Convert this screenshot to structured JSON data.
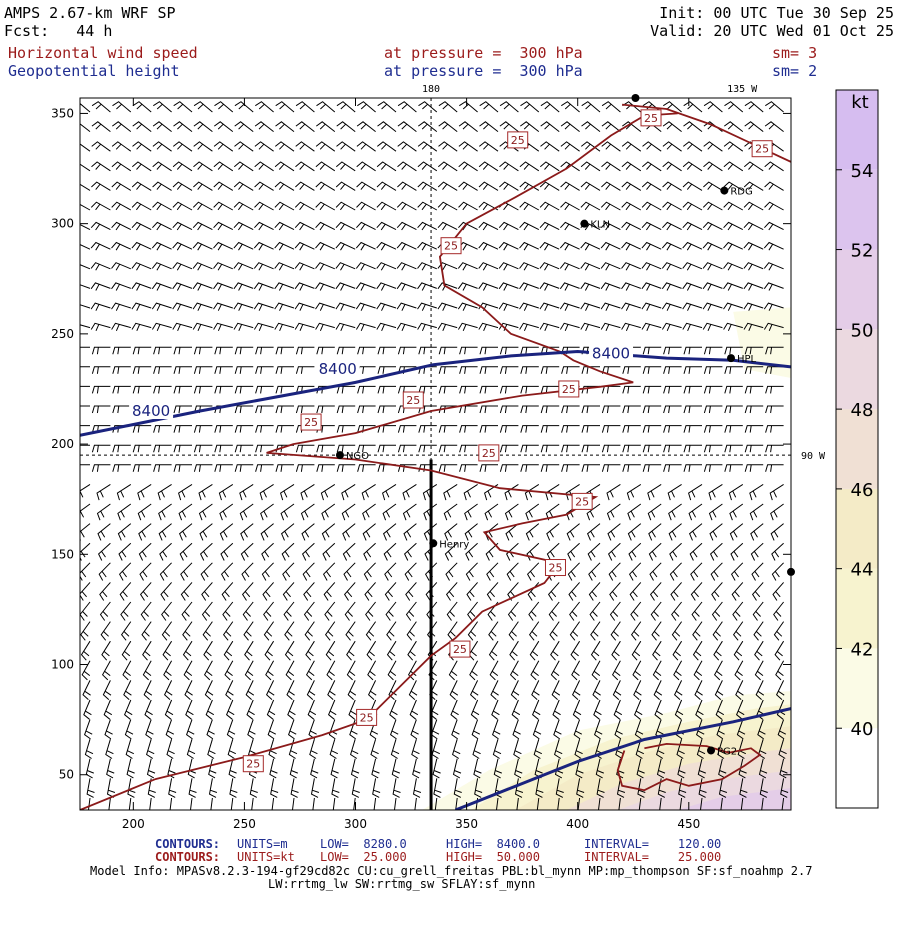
{
  "header": {
    "model_title": "AMPS 2.67-km WRF SP",
    "forecast": "Fcst:   44 h",
    "init": "Init: 00 UTC Tue 30 Sep 25",
    "valid": "Valid: 20 UTC Wed 01 Oct 25",
    "field1_name": "Horizontal wind speed",
    "field1_level": "at pressure =  300 hPa",
    "field1_smooth": "sm= 3",
    "field2_name": "Geopotential height",
    "field2_level": "at pressure =  300 hPa",
    "field2_smooth": "sm= 2"
  },
  "colors": {
    "height_contour": "#1a237e",
    "speed_contour": "#8b1a1a",
    "speed_label_border": "#a52a2a",
    "barb": "#000000",
    "lon_line": "#000000",
    "fill_40": "#fbfbe6",
    "fill_42": "#f7f3cf",
    "fill_44": "#f4ebc7",
    "fill_46": "#f0e0d4",
    "fill_48": "#ebd9e0",
    "fill_50": "#e4cde8",
    "fill_52": "#dcc4ee",
    "fill_54": "#d6bdf0"
  },
  "chart_data": {
    "type": "contour-map",
    "xlim": [
      176,
      496
    ],
    "ylim": [
      34,
      357
    ],
    "x_ticks": [
      200,
      250,
      300,
      350,
      400,
      450
    ],
    "y_ticks": [
      50,
      100,
      150,
      200,
      250,
      300,
      350
    ],
    "lon_labels": [
      {
        "text": "180",
        "x": 334,
        "y": 357
      },
      {
        "text": "135 W",
        "x": 474,
        "y": 357
      },
      {
        "text": "90 W",
        "x": 496,
        "y": 195
      }
    ],
    "meridian_x": 334,
    "parallel_y": 195,
    "cross_section_line": {
      "x": 334,
      "y_from": 34,
      "y_to": 193
    },
    "height_contours": [
      {
        "value": "8400",
        "points": [
          [
            176,
            204
          ],
          [
            230,
            215
          ],
          [
            300,
            228
          ],
          [
            335,
            236
          ],
          [
            370,
            240
          ],
          [
            400,
            242
          ],
          [
            440,
            239
          ],
          [
            470,
            238
          ],
          [
            496,
            235
          ]
        ],
        "labels": [
          {
            "x": 208,
            "y": 215
          },
          {
            "x": 292,
            "y": 234
          },
          {
            "x": 415,
            "y": 241
          }
        ]
      },
      {
        "value": "",
        "points": [
          [
            345,
            34
          ],
          [
            370,
            44
          ],
          [
            400,
            56
          ],
          [
            430,
            66
          ],
          [
            470,
            74
          ],
          [
            496,
            80
          ]
        ],
        "labels": []
      }
    ],
    "speed_contours": [
      {
        "value": "25",
        "points": [
          [
            420,
            354
          ],
          [
            440,
            352
          ],
          [
            460,
            345
          ],
          [
            496,
            328
          ]
        ],
        "labels": []
      },
      {
        "value": "25",
        "points": [
          [
            176,
            34
          ],
          [
            210,
            48
          ],
          [
            250,
            58
          ],
          [
            285,
            68
          ],
          [
            305,
            75
          ],
          [
            320,
            90
          ],
          [
            334,
            104
          ],
          [
            345,
            112
          ],
          [
            357,
            124
          ],
          [
            385,
            137
          ],
          [
            392,
            146
          ],
          [
            365,
            152
          ],
          [
            358,
            160
          ],
          [
            375,
            164
          ],
          [
            395,
            168
          ],
          [
            408,
            176
          ],
          [
            365,
            180
          ],
          [
            334,
            188
          ],
          [
            300,
            193
          ],
          [
            260,
            196
          ],
          [
            272,
            200
          ],
          [
            300,
            205
          ],
          [
            334,
            215
          ],
          [
            375,
            222
          ],
          [
            410,
            226
          ],
          [
            425,
            228
          ],
          [
            410,
            233
          ],
          [
            398,
            238
          ],
          [
            392,
            242
          ],
          [
            370,
            250
          ],
          [
            357,
            262
          ],
          [
            340,
            272
          ],
          [
            338,
            285
          ],
          [
            350,
            300
          ],
          [
            372,
            312
          ],
          [
            395,
            325
          ],
          [
            415,
            340
          ],
          [
            430,
            349
          ],
          [
            445,
            350
          ]
        ],
        "labels": [
          {
            "x": 254,
            "y": 55
          },
          {
            "x": 305,
            "y": 76
          },
          {
            "x": 347,
            "y": 107
          },
          {
            "x": 390,
            "y": 144
          },
          {
            "x": 402,
            "y": 174
          },
          {
            "x": 360,
            "y": 196
          },
          {
            "x": 280,
            "y": 210
          },
          {
            "x": 326,
            "y": 220
          },
          {
            "x": 396,
            "y": 225
          },
          {
            "x": 343,
            "y": 290
          },
          {
            "x": 373,
            "y": 338
          },
          {
            "x": 433,
            "y": 348
          },
          {
            "x": 483,
            "y": 334
          }
        ]
      },
      {
        "value": "",
        "points": [
          [
            421,
            61
          ],
          [
            418,
            52
          ],
          [
            420,
            45
          ],
          [
            430,
            43
          ],
          [
            440,
            48
          ],
          [
            450,
            45
          ],
          [
            465,
            48
          ],
          [
            475,
            54
          ],
          [
            482,
            59
          ],
          [
            478,
            62
          ],
          [
            468,
            60
          ],
          [
            458,
            63
          ],
          [
            440,
            64
          ],
          [
            430,
            62
          ]
        ],
        "labels": []
      }
    ],
    "speed_label": "25",
    "stations": [
      {
        "name": "RDG",
        "x": 466,
        "y": 315
      },
      {
        "name": "KLN",
        "x": 403,
        "y": 300
      },
      {
        "name": "HPL",
        "x": 469,
        "y": 239
      },
      {
        "name": "NGO",
        "x": 293,
        "y": 195
      },
      {
        "name": "Henry",
        "x": 335,
        "y": 155
      },
      {
        "name": "PG2",
        "x": 460,
        "y": 61
      },
      {
        "name": "",
        "x": 496,
        "y": 142
      },
      {
        "name": "",
        "x": 426,
        "y": 357
      }
    ],
    "colorbar": {
      "unit": "kt",
      "ticks": [
        40,
        42,
        44,
        46,
        48,
        50,
        52,
        54
      ],
      "min": 38,
      "max": 56
    }
  },
  "footer": {
    "contours1_label": "CONTOURS:",
    "contours1_units": "UNITS=m",
    "contours1_low": "LOW=  8280.0",
    "contours1_high": "HIGH=  8400.0",
    "contours1_interval": "INTERVAL=    120.00",
    "contours2_label": "CONTOURS:",
    "contours2_units": "UNITS=kt",
    "contours2_low": "LOW=  25.000",
    "contours2_high": "HIGH=  50.000",
    "contours2_interval": "INTERVAL=    25.000",
    "model_info": "Model Info: MPASv8.2.3-194-gf29cd82c CU:cu_grell_freitas PBL:bl_mynn MP:mp_thompson SF:sf_noahmp 2.7",
    "model_info2": "LW:rrtmg_lw SW:rrtmg_sw SFLAY:sf_mynn"
  }
}
